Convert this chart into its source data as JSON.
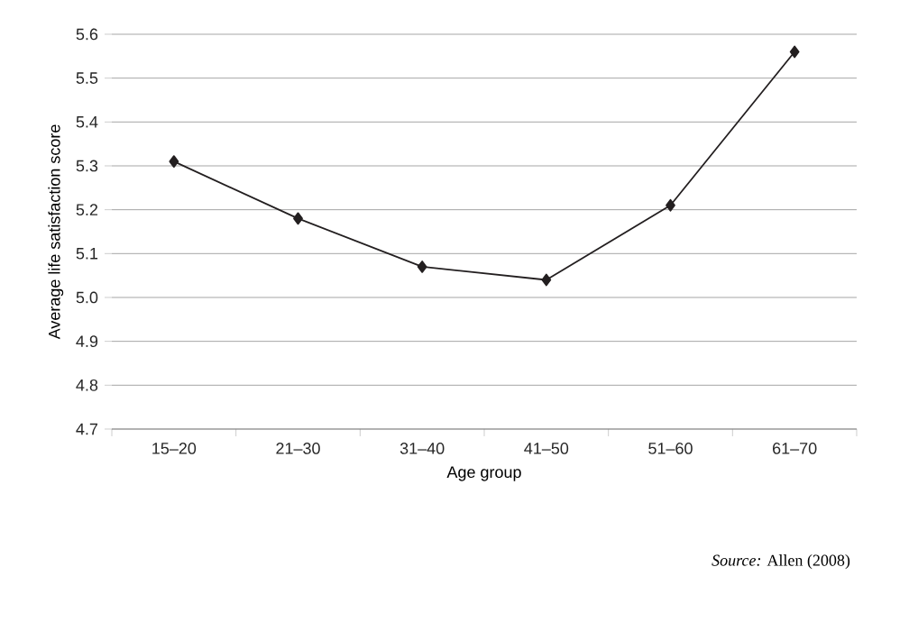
{
  "chart_data": {
    "type": "line",
    "xlabel": "Age group",
    "ylabel": "Average life satisfaction score",
    "categories": [
      "15–20",
      "21–30",
      "31–40",
      "41–50",
      "51–60",
      "61–70"
    ],
    "series": [
      {
        "color": "#231f20",
        "values": [
          5.31,
          5.18,
          5.07,
          5.04,
          5.21,
          5.56
        ]
      }
    ],
    "ylim": [
      4.7,
      5.6
    ],
    "yticks": [
      4.7,
      4.8,
      4.9,
      {
        "value": 5.0,
        "label": "5.0"
      },
      5.1,
      5.2,
      5.3,
      5.4,
      5.5,
      5.6
    ],
    "grid": "y",
    "marker": "diamond",
    "line_style": "solid",
    "annotations": [
      "*Source:* Allen (2008)"
    ]
  }
}
